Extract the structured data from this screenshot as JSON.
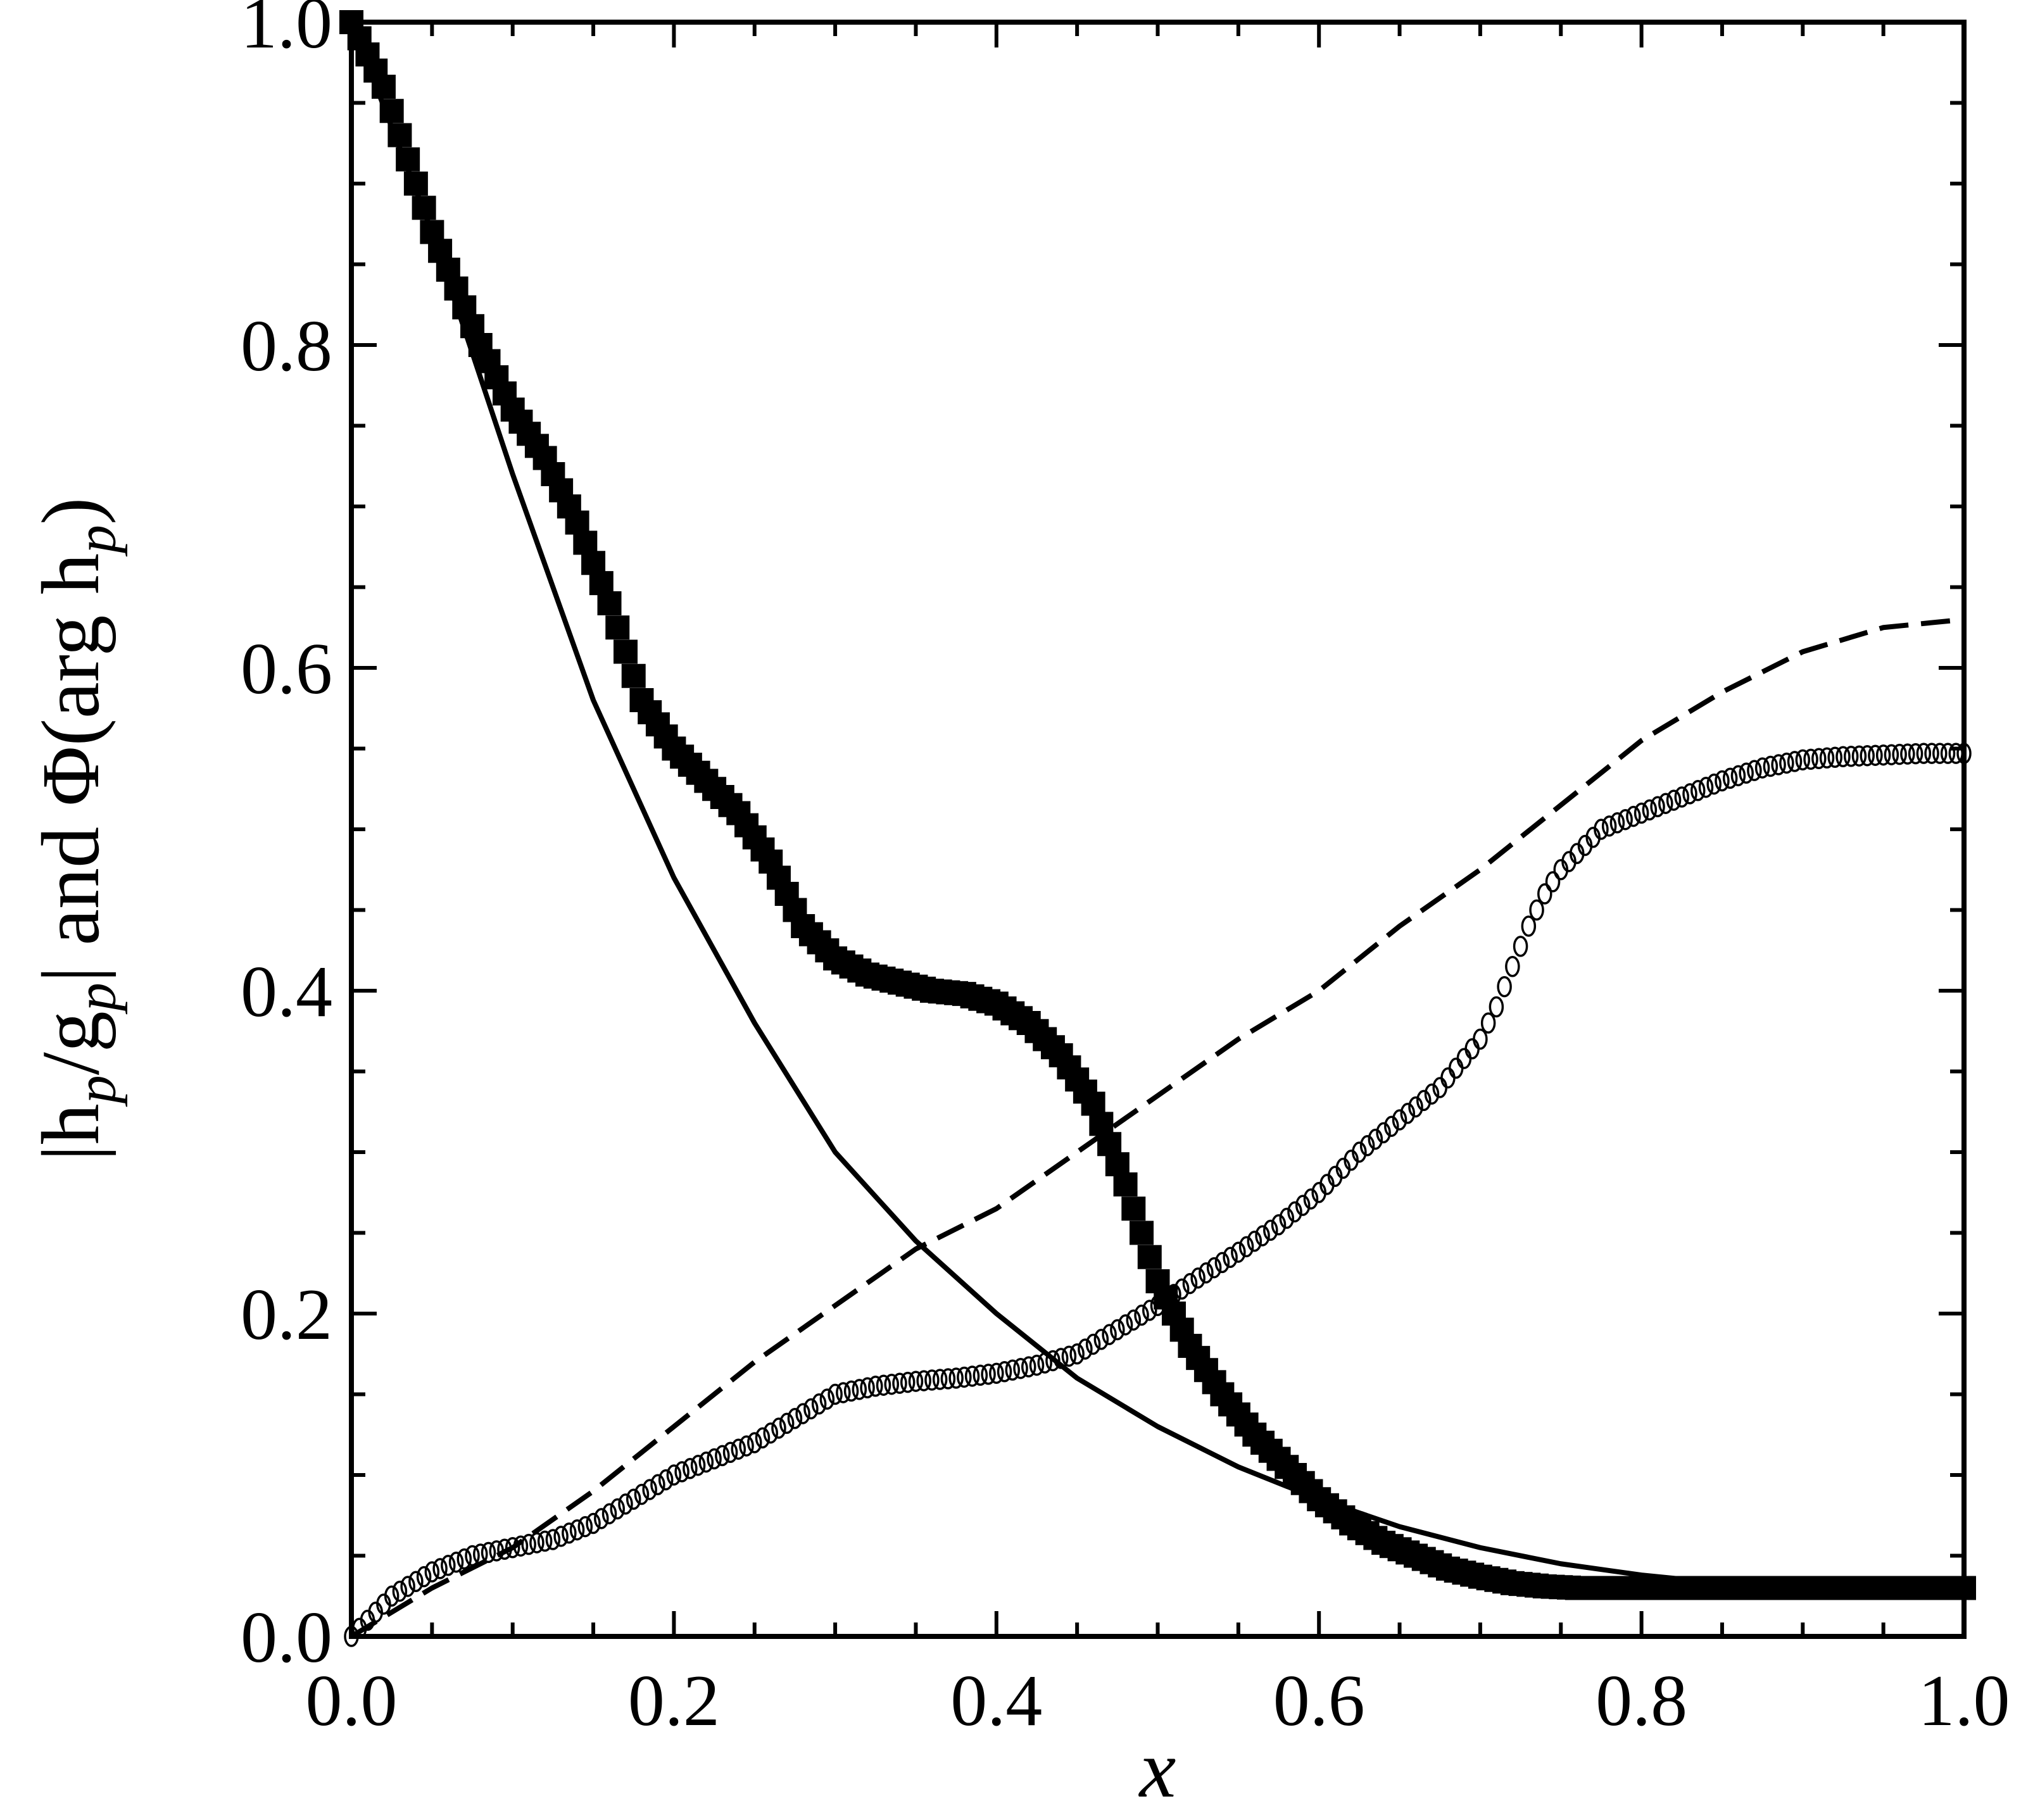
{
  "chart_data": {
    "type": "line",
    "xlabel": "x",
    "ylabel": {
      "parts": [
        "|h",
        "p",
        "/g",
        "p",
        "| and Φ(arg h",
        "p",
        ")"
      ]
    },
    "xlim": [
      0.0,
      1.0
    ],
    "ylim": [
      0.0,
      1.0
    ],
    "x_ticks": [
      0.0,
      0.2,
      0.4,
      0.6,
      0.8,
      1.0
    ],
    "x_tick_labels": [
      "0.0",
      "0.2",
      "0.4",
      "0.6",
      "0.8",
      "1.0"
    ],
    "y_ticks": [
      0.0,
      0.2,
      0.4,
      0.6,
      0.8,
      1.0
    ],
    "y_tick_labels": [
      "0.0",
      "0.2",
      "0.4",
      "0.6",
      "0.8",
      "1.0"
    ],
    "grid": false,
    "legend": false,
    "colors": {
      "ink": "#000000",
      "background": "#ffffff"
    },
    "series": [
      {
        "style": "filled-squares",
        "x": [
          0.0,
          0.02,
          0.05,
          0.08,
          0.1,
          0.12,
          0.14,
          0.16,
          0.18,
          0.2,
          0.22,
          0.24,
          0.26,
          0.28,
          0.3,
          0.32,
          0.34,
          0.36,
          0.38,
          0.4,
          0.42,
          0.44,
          0.46,
          0.48,
          0.5,
          0.52,
          0.54,
          0.56,
          0.58,
          0.6,
          0.62,
          0.64,
          0.66,
          0.68,
          0.7,
          0.72,
          0.74,
          0.76,
          0.78,
          0.8,
          0.85,
          0.9,
          0.95,
          1.0
        ],
        "y": [
          1.0,
          0.96,
          0.87,
          0.8,
          0.76,
          0.73,
          0.69,
          0.64,
          0.58,
          0.55,
          0.53,
          0.51,
          0.48,
          0.44,
          0.42,
          0.41,
          0.405,
          0.4,
          0.398,
          0.392,
          0.38,
          0.36,
          0.33,
          0.28,
          0.22,
          0.18,
          0.15,
          0.125,
          0.105,
          0.085,
          0.07,
          0.058,
          0.05,
          0.042,
          0.037,
          0.033,
          0.031,
          0.03,
          0.03,
          0.03,
          0.03,
          0.03,
          0.03,
          0.03
        ]
      },
      {
        "style": "solid-line",
        "x": [
          0.0,
          0.05,
          0.1,
          0.15,
          0.2,
          0.25,
          0.3,
          0.35,
          0.4,
          0.45,
          0.5,
          0.55,
          0.6,
          0.65,
          0.7,
          0.75,
          0.8,
          0.85,
          0.9,
          0.95,
          1.0
        ],
        "y": [
          1.0,
          0.87,
          0.72,
          0.58,
          0.47,
          0.38,
          0.3,
          0.245,
          0.2,
          0.16,
          0.13,
          0.105,
          0.085,
          0.068,
          0.055,
          0.045,
          0.038,
          0.033,
          0.031,
          0.03,
          0.03
        ]
      },
      {
        "style": "dashed-line",
        "x": [
          0.0,
          0.05,
          0.1,
          0.15,
          0.2,
          0.25,
          0.3,
          0.35,
          0.4,
          0.45,
          0.5,
          0.55,
          0.6,
          0.65,
          0.7,
          0.75,
          0.8,
          0.85,
          0.9,
          0.95,
          1.0
        ],
        "y": [
          0.0,
          0.03,
          0.055,
          0.09,
          0.13,
          0.17,
          0.205,
          0.24,
          0.265,
          0.3,
          0.335,
          0.37,
          0.4,
          0.44,
          0.475,
          0.515,
          0.555,
          0.585,
          0.61,
          0.625,
          0.63
        ]
      },
      {
        "style": "open-circles",
        "x": [
          0.0,
          0.025,
          0.05,
          0.075,
          0.1,
          0.125,
          0.15,
          0.175,
          0.2,
          0.225,
          0.25,
          0.275,
          0.3,
          0.325,
          0.35,
          0.375,
          0.4,
          0.425,
          0.45,
          0.475,
          0.5,
          0.525,
          0.55,
          0.575,
          0.6,
          0.625,
          0.65,
          0.675,
          0.7,
          0.71,
          0.72,
          0.73,
          0.74,
          0.75,
          0.775,
          0.8,
          0.825,
          0.85,
          0.875,
          0.9,
          0.925,
          0.95,
          0.975,
          1.0
        ],
        "y": [
          0.0,
          0.025,
          0.04,
          0.05,
          0.055,
          0.06,
          0.07,
          0.085,
          0.1,
          0.11,
          0.12,
          0.135,
          0.15,
          0.155,
          0.158,
          0.16,
          0.163,
          0.168,
          0.175,
          0.19,
          0.205,
          0.222,
          0.238,
          0.255,
          0.275,
          0.3,
          0.32,
          0.34,
          0.37,
          0.39,
          0.415,
          0.44,
          0.46,
          0.475,
          0.5,
          0.51,
          0.52,
          0.53,
          0.538,
          0.543,
          0.545,
          0.546,
          0.547,
          0.547
        ]
      }
    ]
  }
}
